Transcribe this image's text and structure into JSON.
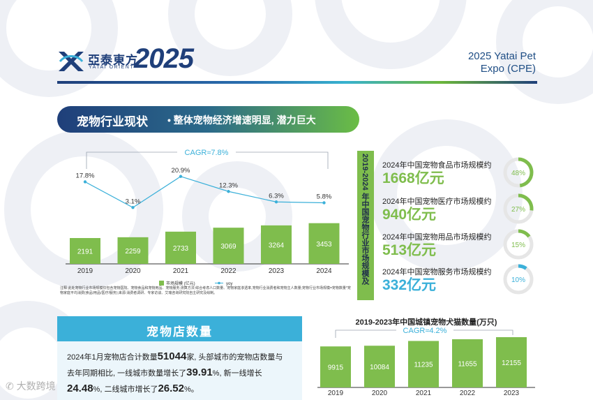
{
  "header": {
    "logo_cn": "亞泰東方",
    "logo_en": "YATAI ORIENT",
    "logo_year": "2025",
    "expo_line1": "2025 Yatai Pet",
    "expo_line2": "Expo (CPE)"
  },
  "banner": {
    "title": "宠物行业现状",
    "subtitle": "• 整体宠物经济增速明显, 潜力巨大"
  },
  "market_chart_note": "注释:此处宠物行业市场规模仅包含宠物医院、宠物食品和宠物用品、宠物服务;测算方法:综合考虑人口数量、宠物家庭渗透率,宠物行业消费者和宠物主人数量;宠物行业市场规模=宠物数量*宠物家庭平均消费(食品/用品/医疗/服务);来源:消费者调研、专家访谈、艾瑞咨询研究院自主研究及绘制。",
  "vertical_title": "2019-2024 年中国宠物行业市场规模及",
  "stats": [
    {
      "label": "2024年中国宠物食品市场规模约",
      "value": "1668亿元",
      "percent_label": "48%",
      "percent": 48,
      "color": "#7fbd4d"
    },
    {
      "label": "2024年中国宠物医疗市场规模约",
      "value": "940亿元",
      "percent_label": "27%",
      "percent": 27,
      "color": "#7fbd4d"
    },
    {
      "label": "2024年中国宠物用品市场规模约",
      "value": "513亿元",
      "percent_label": "15%",
      "percent": 15,
      "color": "#7fbd4d"
    },
    {
      "label": "2024年中国宠物服务市场规模约",
      "value": "332亿元",
      "percent_label": "10%",
      "percent": 10,
      "color": "#3bb0d9"
    }
  ],
  "store": {
    "title": "宠物店数量",
    "t1": "2024年1月宠物店合计数量",
    "n1": "51044",
    "t2": "家, 头部城市的宠物店数量与",
    "t3": "去年同期相比, 一线城市数量增长了",
    "n2": "39.91",
    "t4": "%, 新一线增长",
    "n3": "24.48",
    "t5": "%, 二线城市增长了",
    "n4": "26.52",
    "t6": "%。"
  },
  "chart2_title": "2019-2023年中国城镇宠物犬猫数量(万只)",
  "watermark": "大数跨境",
  "chart_data": [
    {
      "type": "bar",
      "title": "",
      "cagr": "CAGR≈7.8%",
      "categories": [
        "2019",
        "2020",
        "2021",
        "2022",
        "2023",
        "2024"
      ],
      "series": [
        {
          "name": "市场规模 (亿元)",
          "values": [
            2191,
            2259,
            2733,
            3069,
            3264,
            3453
          ]
        },
        {
          "name": "yoy",
          "values": [
            17.8,
            3.1,
            20.9,
            12.3,
            6.3,
            5.8
          ]
        }
      ],
      "yoy_labels": [
        "17.8%",
        "3.1%",
        "20.9%",
        "12.3%",
        "6.3%",
        "5.8%"
      ],
      "legend_bar": "市场规模 (亿元)",
      "legend_line": "yoy",
      "ylim": [
        0,
        4500
      ],
      "bar_color": "#7fbd4d",
      "line_color": "#3bb0d9"
    },
    {
      "type": "bar",
      "title": "2019-2023年中国城镇宠物犬猫数量(万只)",
      "cagr": "CAGR≈4.2%",
      "categories": [
        "2019",
        "2020",
        "2021",
        "2022",
        "2023"
      ],
      "values": [
        9915,
        10084,
        11235,
        11655,
        12155
      ],
      "ylim": [
        0,
        13500
      ],
      "bar_color": "#7fbd4d"
    }
  ]
}
